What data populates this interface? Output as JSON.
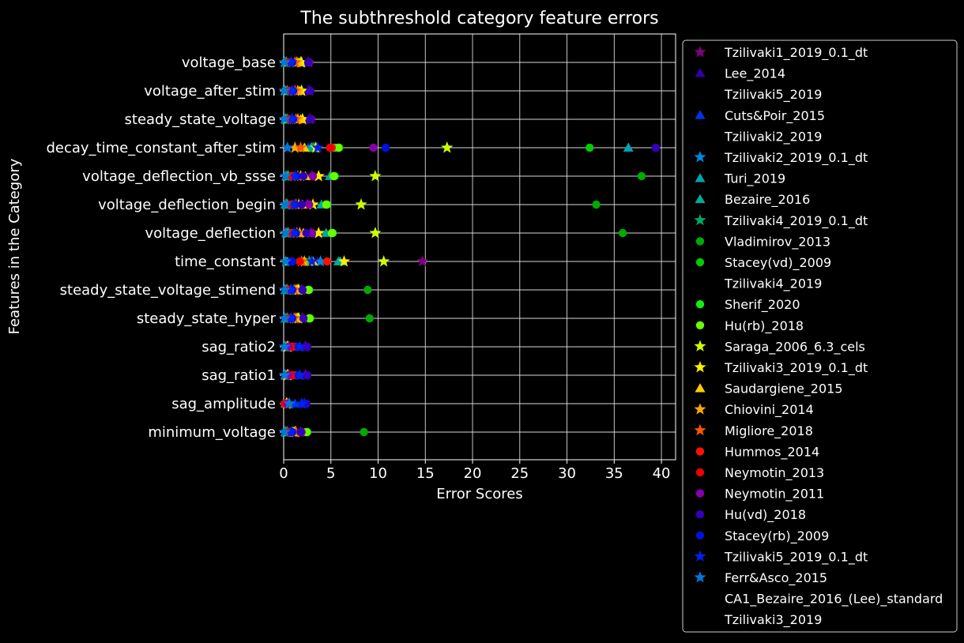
{
  "chart_data": {
    "type": "scatter",
    "title": "The subthreshold category feature errors",
    "xlabel": "Error Scores",
    "ylabel": "Features in the Category",
    "xlim": [
      0,
      41.5
    ],
    "x_ticks": [
      0,
      5,
      10,
      15,
      20,
      25,
      30,
      35,
      40
    ],
    "grid": true,
    "legend_position": "outside-right",
    "categories": [
      "voltage_base",
      "voltage_after_stim",
      "steady_state_voltage",
      "decay_time_constant_after_stim",
      "voltage_deflection_vb_ssse",
      "voltage_deflection_begin",
      "voltage_deflection",
      "time_constant",
      "steady_state_voltage_stimend",
      "steady_state_hyper",
      "sag_ratio2",
      "sag_ratio1",
      "sag_amplitude",
      "minimum_voltage"
    ],
    "series": [
      {
        "name": "Tzilivaki1_2019_0.1_dt",
        "marker": "star",
        "color": "#800080",
        "values": [
          2.6,
          2.7,
          2.8,
          3.4,
          3.0,
          2.5,
          2.9,
          14.7,
          1.9,
          2.0,
          2.3,
          2.3,
          2.2,
          1.8
        ]
      },
      {
        "name": "Lee_2014",
        "marker": "triangle",
        "color": "#3300aa",
        "values": [
          2.5,
          2.6,
          2.7,
          3.1,
          2.9,
          2.4,
          2.8,
          3.6,
          1.8,
          1.9,
          2.2,
          2.2,
          2.1,
          1.7
        ]
      },
      {
        "name": "Tzilivaki5_2019",
        "marker": "none",
        "color": "#000000",
        "values": [
          null,
          null,
          null,
          null,
          null,
          null,
          null,
          null,
          null,
          null,
          null,
          null,
          null,
          null
        ]
      },
      {
        "name": "Cuts&Poir_2015",
        "marker": "triangle",
        "color": "#0033ee",
        "values": [
          0.7,
          0.8,
          0.8,
          2.6,
          1.0,
          0.9,
          0.8,
          2.9,
          0.7,
          0.7,
          1.3,
          1.3,
          1.2,
          0.7
        ]
      },
      {
        "name": "Tzilivaki2_2019",
        "marker": "none",
        "color": "#000000",
        "values": [
          null,
          null,
          null,
          null,
          null,
          null,
          null,
          null,
          null,
          null,
          null,
          null,
          null,
          null
        ]
      },
      {
        "name": "Tzilivaki2_2019_0.1_dt",
        "marker": "star",
        "color": "#0088dd",
        "values": [
          0.1,
          0.1,
          0.2,
          3.0,
          0.4,
          0.3,
          0.4,
          3.9,
          0.3,
          0.4,
          0.2,
          0.2,
          0.6,
          0.2
        ]
      },
      {
        "name": "Turi_2019",
        "marker": "triangle",
        "color": "#00a5b0",
        "values": [
          0.2,
          0.2,
          0.2,
          36.5,
          0.3,
          0.2,
          0.3,
          5.8,
          0.2,
          0.2,
          0.2,
          0.2,
          0.2,
          0.2
        ]
      },
      {
        "name": "Bezaire_2016",
        "marker": "triangle",
        "color": "#00aa99",
        "values": [
          0.3,
          0.3,
          0.3,
          2.9,
          4.9,
          4.0,
          4.5,
          6.0,
          0.3,
          0.3,
          0.3,
          0.3,
          0.3,
          0.3
        ]
      },
      {
        "name": "Tzilivaki4_2019_0.1_dt",
        "marker": "star",
        "color": "#00aa66",
        "values": [
          0.3,
          0.4,
          0.4,
          3.2,
          0.5,
          0.4,
          0.5,
          2.7,
          0.4,
          0.4,
          0.4,
          0.4,
          0.4,
          0.4
        ]
      },
      {
        "name": "Vladimirov_2013",
        "marker": "circle",
        "color": "#00aa00",
        "values": [
          0.2,
          0.3,
          0.3,
          5.9,
          37.9,
          33.1,
          35.9,
          0.3,
          8.9,
          9.1,
          0.3,
          0.3,
          0.3,
          8.5
        ]
      },
      {
        "name": "Stacey(vd)_2009",
        "marker": "circle",
        "color": "#00cc00",
        "values": [
          0.2,
          0.3,
          0.3,
          32.4,
          0.4,
          0.3,
          0.4,
          0.3,
          0.3,
          0.3,
          0.3,
          0.3,
          0.3,
          0.2
        ]
      },
      {
        "name": "Tzilivaki4_2019",
        "marker": "none",
        "color": "#000000",
        "values": [
          null,
          null,
          null,
          null,
          null,
          null,
          null,
          null,
          null,
          null,
          null,
          null,
          null,
          null
        ]
      },
      {
        "name": "Sherif_2020",
        "marker": "circle",
        "color": "#11ee11",
        "values": [
          0.3,
          0.3,
          0.3,
          5.4,
          5.4,
          4.6,
          5.2,
          2.2,
          2.7,
          2.8,
          0.3,
          0.3,
          0.3,
          2.5
        ]
      },
      {
        "name": "Hu(rb)_2018",
        "marker": "circle",
        "color": "#66ff00",
        "values": [
          0.2,
          0.2,
          0.2,
          5.8,
          5.3,
          4.5,
          5.1,
          0.3,
          2.6,
          2.7,
          0.3,
          0.3,
          0.2,
          2.4
        ]
      },
      {
        "name": "Saraga_2006_6.3_cels",
        "marker": "star",
        "color": "#ccff00",
        "values": [
          1.9,
          1.9,
          2.0,
          17.3,
          9.7,
          8.2,
          9.7,
          10.6,
          1.6,
          1.6,
          0.4,
          0.4,
          0.3,
          1.3
        ]
      },
      {
        "name": "Tzilivaki3_2019_0.1_dt",
        "marker": "star",
        "color": "#ffee00",
        "values": [
          1.8,
          1.9,
          2.0,
          3.4,
          3.7,
          3.1,
          3.7,
          6.4,
          1.5,
          1.5,
          0.4,
          0.4,
          0.3,
          1.2
        ]
      },
      {
        "name": "Saudargiene_2015",
        "marker": "triangle",
        "color": "#ffcc00",
        "values": [
          1.6,
          1.7,
          1.8,
          2.2,
          2.3,
          2.0,
          2.1,
          3.1,
          1.4,
          1.4,
          0.5,
          0.5,
          0.4,
          1.1
        ]
      },
      {
        "name": "Chiovini_2014",
        "marker": "star",
        "color": "#ffaa00",
        "values": [
          1.4,
          1.5,
          1.5,
          1.2,
          1.8,
          1.6,
          1.7,
          2.2,
          1.3,
          1.3,
          0.5,
          0.5,
          0.4,
          1.0
        ]
      },
      {
        "name": "Migliore_2018",
        "marker": "star",
        "color": "#ff5500",
        "values": [
          1.2,
          1.2,
          1.3,
          1.8,
          1.5,
          1.3,
          1.4,
          1.9,
          1.1,
          1.1,
          0.5,
          0.5,
          0.4,
          1.3
        ]
      },
      {
        "name": "Hummos_2014",
        "marker": "circle",
        "color": "#ff1100",
        "values": [
          0.4,
          0.5,
          0.5,
          5.1,
          0.8,
          0.7,
          0.8,
          4.6,
          0.5,
          0.5,
          0.9,
          0.9,
          0.2,
          0.5
        ]
      },
      {
        "name": "Neymotin_2013",
        "marker": "circle",
        "color": "#ee0000",
        "values": [
          0.5,
          0.5,
          0.5,
          4.9,
          0.9,
          0.8,
          0.9,
          1.7,
          0.6,
          0.6,
          1.0,
          1.0,
          0.1,
          0.6
        ]
      },
      {
        "name": "Neymotin_2011",
        "marker": "circle",
        "color": "#8800aa",
        "values": [
          2.7,
          2.8,
          2.9,
          9.5,
          3.1,
          2.7,
          3.0,
          0.8,
          2.0,
          2.1,
          0.5,
          0.5,
          0.4,
          1.9
        ]
      },
      {
        "name": "Hu(vd)_2018",
        "marker": "circle",
        "color": "#3300bb",
        "values": [
          2.6,
          2.8,
          2.8,
          39.4,
          2.1,
          1.9,
          2.4,
          0.7,
          2.0,
          2.1,
          2.5,
          2.5,
          2.4,
          1.8
        ]
      },
      {
        "name": "Stacey(rb)_2009",
        "marker": "circle",
        "color": "#0011dd",
        "values": [
          0.9,
          1.0,
          1.0,
          10.8,
          1.4,
          1.2,
          1.3,
          0.9,
          0.9,
          0.9,
          1.6,
          1.6,
          2.2,
          0.9
        ]
      },
      {
        "name": "Tzilivaki5_2019_0.1_dt",
        "marker": "star",
        "color": "#0022ee",
        "values": [
          0.8,
          0.9,
          0.9,
          3.6,
          1.2,
          1.1,
          1.1,
          3.0,
          0.8,
          0.8,
          1.7,
          1.7,
          1.9,
          0.8
        ]
      },
      {
        "name": "Ferr&Asco_2015",
        "marker": "star",
        "color": "#0077dd",
        "values": [
          0.1,
          0.1,
          0.1,
          0.4,
          0.2,
          0.2,
          0.2,
          0.2,
          0.1,
          0.1,
          0.1,
          0.1,
          0.6,
          0.1
        ]
      },
      {
        "name": "CA1_Bezaire_2016_(Lee)_standard",
        "marker": "none",
        "color": "#000000",
        "values": [
          null,
          null,
          null,
          null,
          null,
          null,
          null,
          null,
          null,
          null,
          null,
          null,
          null,
          null
        ]
      },
      {
        "name": "Tzilivaki3_2019",
        "marker": "none",
        "color": "#000000",
        "values": [
          null,
          null,
          null,
          null,
          null,
          null,
          null,
          null,
          null,
          null,
          null,
          null,
          null,
          null
        ]
      }
    ]
  }
}
